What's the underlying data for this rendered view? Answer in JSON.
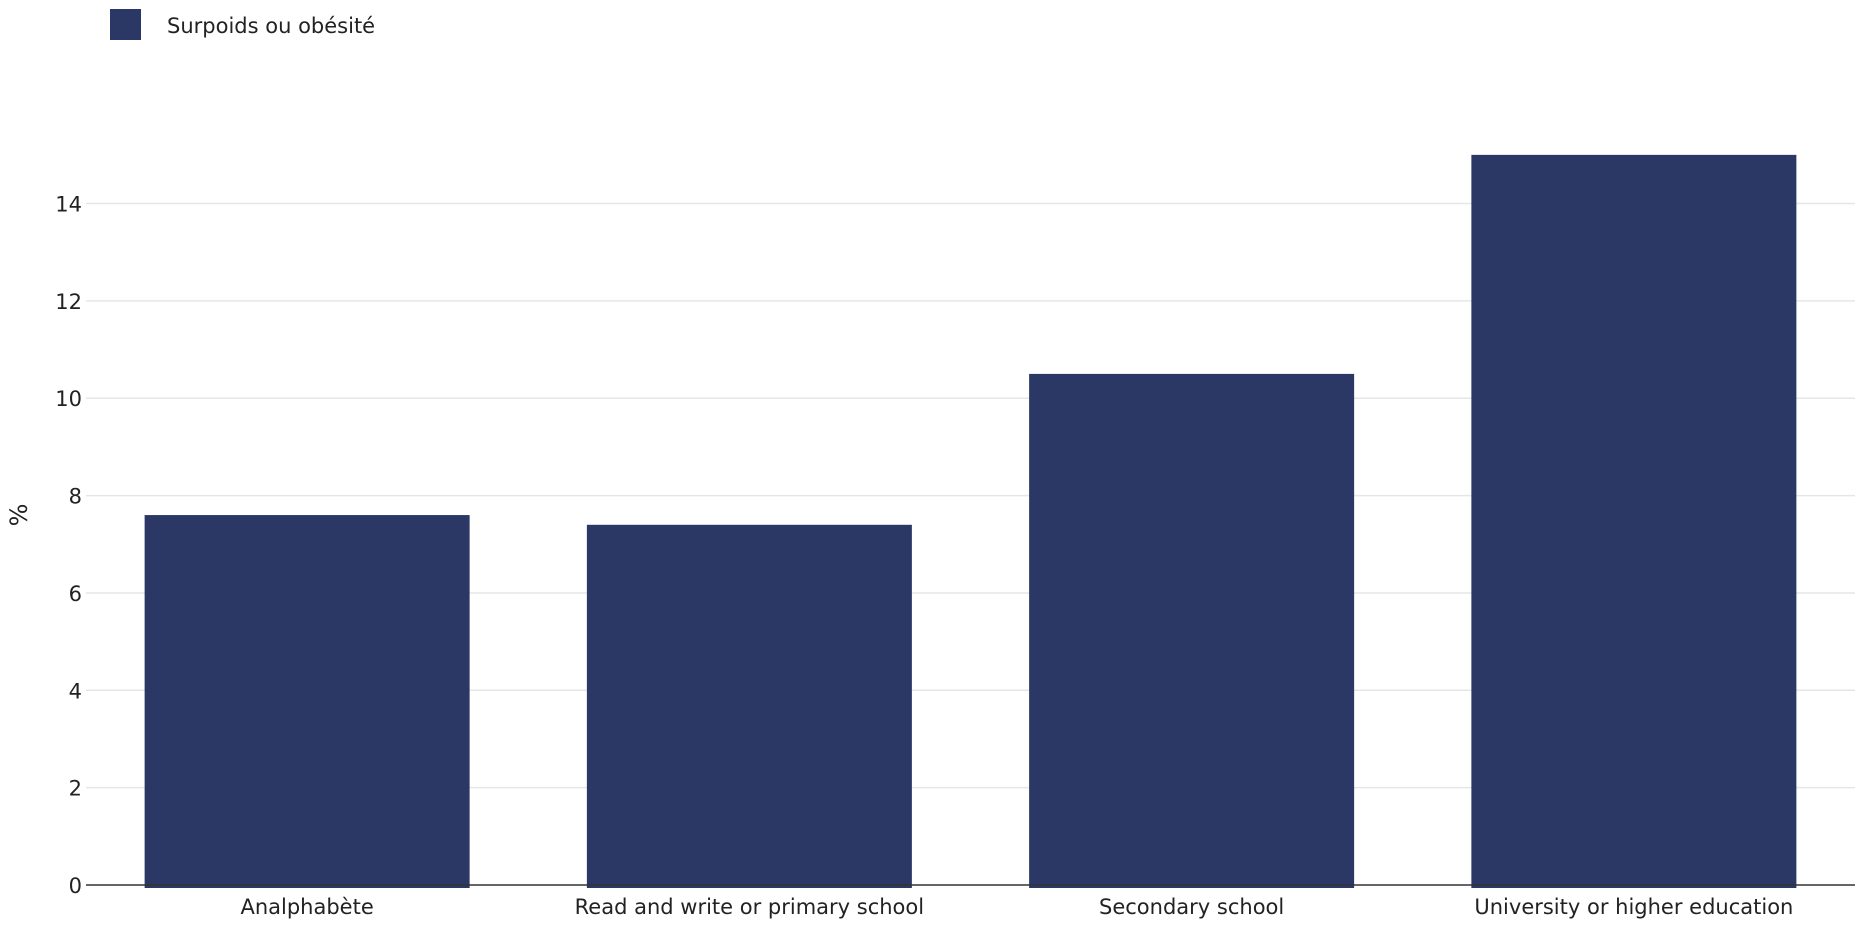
{
  "chart_data": {
    "type": "bar",
    "categories": [
      "Analphabète",
      "Read and write or primary school",
      "Secondary school",
      "University or higher education"
    ],
    "series": [
      {
        "name": "Surpoids ou obésité",
        "values": [
          7.6,
          7.4,
          10.5,
          15.0
        ],
        "color": "#2b3764"
      }
    ],
    "title": "",
    "xlabel": "",
    "ylabel": "%",
    "ylim": [
      0,
      15.1
    ],
    "yticks": [
      0,
      2,
      4,
      6,
      8,
      10,
      12,
      14
    ],
    "grid": true,
    "legend_position": "top-left"
  }
}
